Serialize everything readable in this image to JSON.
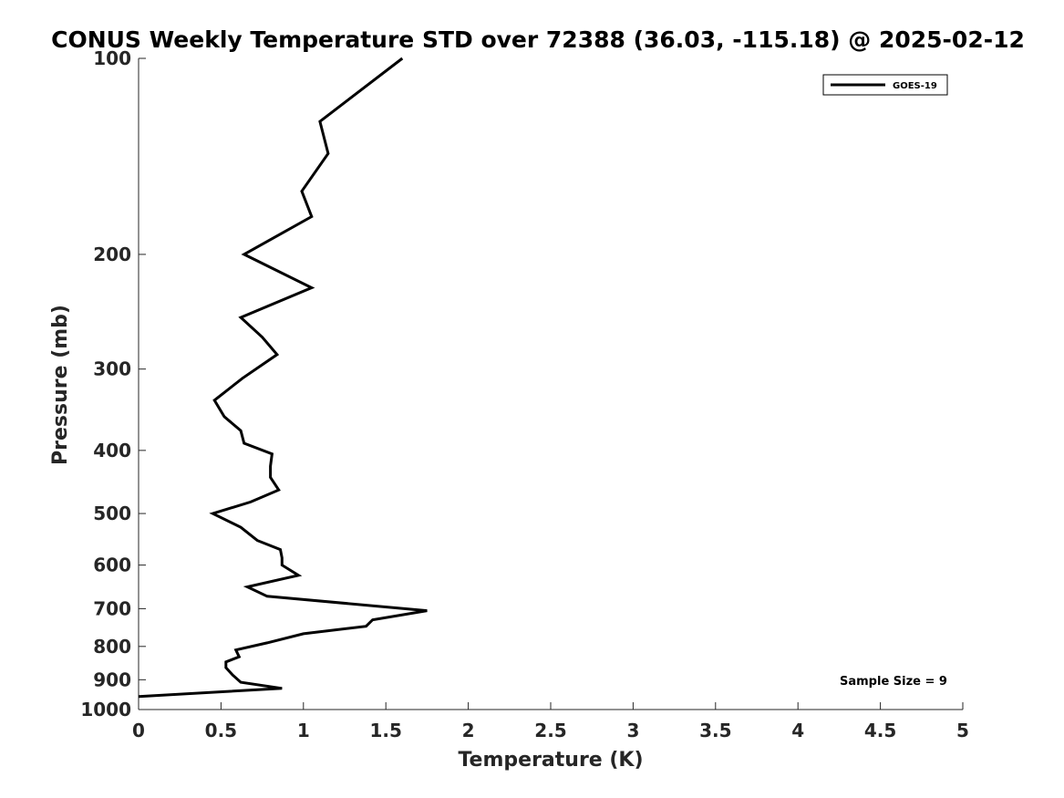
{
  "chart_data": {
    "type": "line",
    "title": "CONUS Weekly Temperature STD over 72388 (36.03, -115.18) @ 2025-02-12",
    "xlabel": "Temperature (K)",
    "ylabel": "Pressure (mb)",
    "xlim": [
      0,
      5
    ],
    "ylim": [
      100,
      1000
    ],
    "y_scale": "log",
    "y_reversed": true,
    "x_ticks": [
      "0",
      "0.5",
      "1",
      "1.5",
      "2",
      "2.5",
      "3",
      "3.5",
      "4",
      "4.5",
      "5"
    ],
    "y_ticks": [
      "100",
      "200",
      "300",
      "400",
      "500",
      "600",
      "700",
      "800",
      "900",
      "1000"
    ],
    "grid": false,
    "legend_position": "top-right",
    "annotation": "Sample Size = 9",
    "series": [
      {
        "name": "GOES-19",
        "color": "#000000",
        "points": [
          [
            1.6,
            100
          ],
          [
            1.1,
            125
          ],
          [
            1.15,
            140
          ],
          [
            0.99,
            160
          ],
          [
            1.05,
            175
          ],
          [
            0.64,
            200
          ],
          [
            1.05,
            225
          ],
          [
            0.62,
            250
          ],
          [
            0.75,
            268
          ],
          [
            0.84,
            285
          ],
          [
            0.63,
            310
          ],
          [
            0.46,
            335
          ],
          [
            0.52,
            355
          ],
          [
            0.62,
            373
          ],
          [
            0.64,
            390
          ],
          [
            0.81,
            405
          ],
          [
            0.8,
            423
          ],
          [
            0.8,
            440
          ],
          [
            0.85,
            460
          ],
          [
            0.68,
            480
          ],
          [
            0.45,
            500
          ],
          [
            0.62,
            525
          ],
          [
            0.72,
            550
          ],
          [
            0.86,
            568
          ],
          [
            0.87,
            585
          ],
          [
            0.87,
            600
          ],
          [
            0.97,
            622
          ],
          [
            0.66,
            648
          ],
          [
            0.78,
            670
          ],
          [
            1.75,
            705
          ],
          [
            1.42,
            728
          ],
          [
            1.38,
            745
          ],
          [
            1.0,
            765
          ],
          [
            0.78,
            790
          ],
          [
            0.59,
            810
          ],
          [
            0.61,
            830
          ],
          [
            0.53,
            845
          ],
          [
            0.53,
            862
          ],
          [
            0.57,
            885
          ],
          [
            0.62,
            908
          ],
          [
            0.87,
            928
          ],
          [
            0.0,
            955
          ]
        ]
      }
    ]
  }
}
